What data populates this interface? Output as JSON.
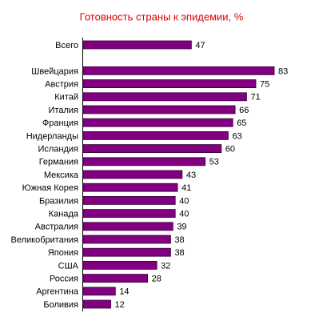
{
  "chart_data": {
    "type": "bar",
    "orientation": "horizontal",
    "title": "Готовность страны к эпидемии, %",
    "categories": [
      "Всего",
      null,
      "Швейцария",
      "Австрия",
      "Китай",
      "Италия",
      "Франция",
      "Нидерланды",
      "Исландия",
      "Германия",
      "Мексика",
      "Южная Корея",
      "Бразилия",
      "Канада",
      "Австралия",
      "Великобритания",
      "Япония",
      "США",
      "Россия",
      "Аргентина",
      "Боливия"
    ],
    "values": [
      47,
      null,
      83,
      75,
      71,
      66,
      65,
      63,
      60,
      53,
      43,
      41,
      40,
      40,
      39,
      38,
      38,
      32,
      28,
      14,
      12
    ],
    "color": "#800080"
  }
}
